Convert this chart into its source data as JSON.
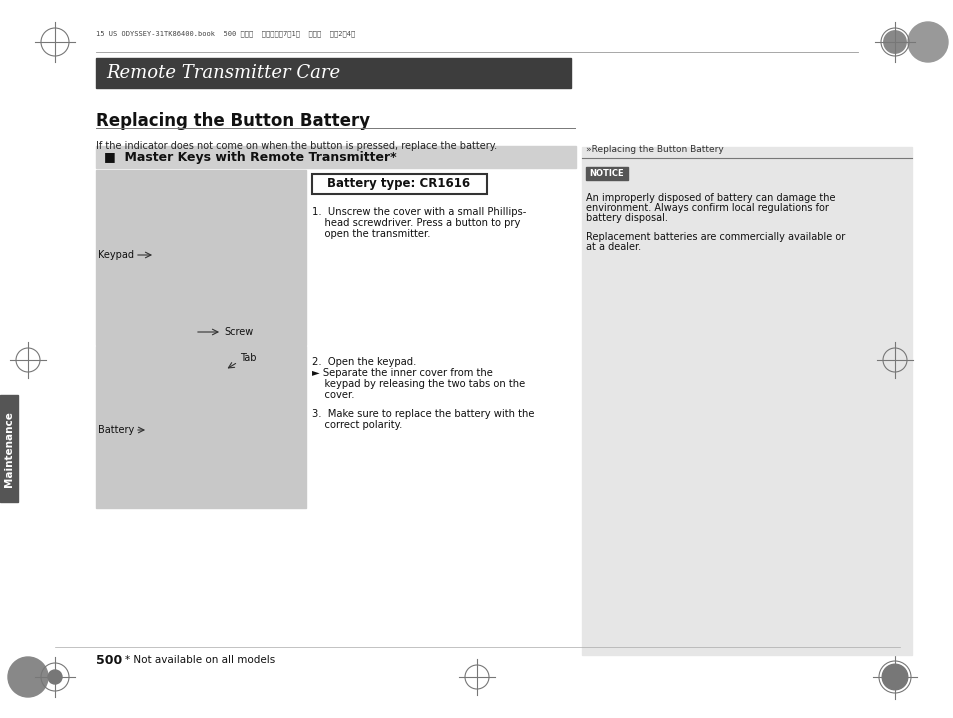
{
  "page_bg": "#ffffff",
  "header_bar_color": "#3d3d3d",
  "header_text": "Remote Transmitter Care",
  "header_text_color": "#ffffff",
  "top_meta_text": "15 US ODYSSEY-31TK86400.book  500 ページ  ２０１４年7月1日  火曜日  午後2晎4分",
  "section_title": "Replacing the Button Battery",
  "section_subtitle": "If the indicator does not come on when the button is pressed, replace the battery.",
  "subsection_header": "■  Master Keys with Remote Transmitter*",
  "subsection_bg": "#d0d0d0",
  "battery_box_text": "Battery type: CR1616",
  "right_panel_bg": "#e6e6e6",
  "right_header_text": "»Replacing the Button Battery",
  "right_header_line_color": "#555555",
  "notice_box_text": "NOTICE",
  "notice_box_bg": "#555555",
  "notice_box_text_color": "#ffffff",
  "notice_text1": "An improperly disposed of battery can damage the",
  "notice_text2": "environment. Always confirm local regulations for",
  "notice_text3": "battery disposal.",
  "replacement_text1": "Replacement batteries are commercially available or",
  "replacement_text2": "at a dealer.",
  "sidebar_text": "Maintenance",
  "sidebar_bg": "#555555",
  "sidebar_text_color": "#ffffff",
  "page_number": "500",
  "footnote_text": "* Not available on all models",
  "image_area_bg": "#c8c8c8",
  "keypad_label": "Keypad",
  "screw_label": "Screw",
  "tab_label": "Tab",
  "battery_label": "Battery",
  "step1a": "1.  Unscrew the cover with a small Phillips-",
  "step1b": "    head screwdriver. Press a button to pry",
  "step1c": "    open the transmitter.",
  "step2a": "2.  Open the keypad.",
  "step2b": "► Separate the inner cover from the",
  "step2c": "    keypad by releasing the two tabs on the",
  "step2d": "    cover.",
  "step3a": "3.  Make sure to replace the battery with the",
  "step3b": "    correct polarity."
}
